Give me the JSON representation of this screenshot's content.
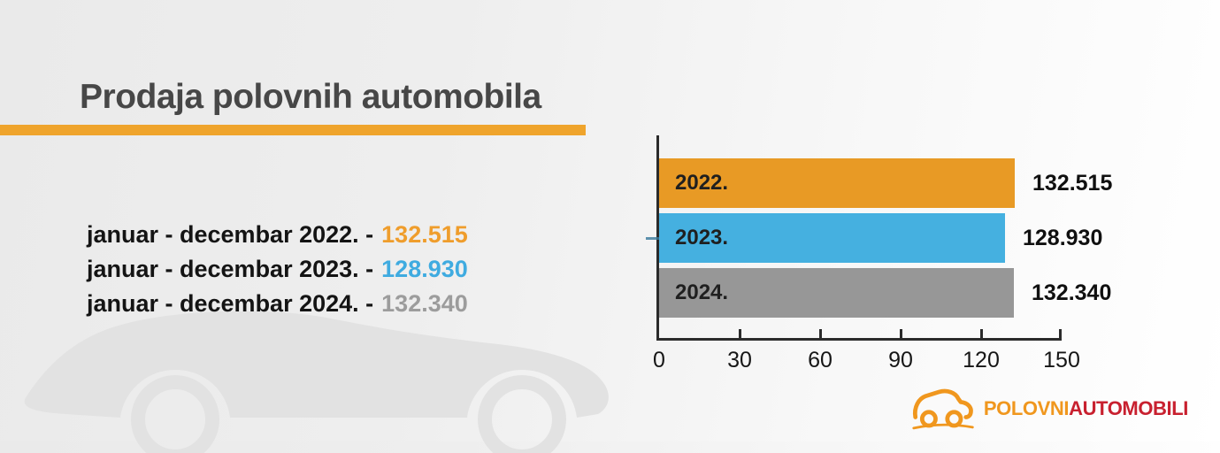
{
  "header": {
    "title": "Prodaja polovnih automobila"
  },
  "summary": {
    "lines": [
      {
        "prefix": "januar - decembar 2022. -",
        "value": "132.515"
      },
      {
        "prefix": "januar - decembar 2023. -",
        "value": "128.930"
      },
      {
        "prefix": "januar - decembar 2024. -",
        "value": "132.340"
      }
    ]
  },
  "chart_data": {
    "type": "bar",
    "orientation": "horizontal",
    "title": "",
    "xlabel": "",
    "ylabel": "",
    "categories": [
      "2022.",
      "2023.",
      "2024."
    ],
    "values": [
      132515,
      128930,
      132340
    ],
    "value_labels": [
      "132.515",
      "128.930",
      "132.340"
    ],
    "bar_colors": [
      "#e89a25",
      "#45b0e0",
      "#979797"
    ],
    "x_tick_labels": [
      "0",
      "30",
      "60",
      "90",
      "120",
      "150"
    ],
    "xlim": [
      0,
      150
    ],
    "axis_unit_scale": 1000,
    "grid": false,
    "legend": false
  },
  "logo": {
    "word1": "POLOVNI",
    "word2": "AUTOMOBILI"
  },
  "colors": {
    "accent_orange": "#ef9d2c",
    "accent_blue": "#3fabe0",
    "accent_gray": "#9c9c9c",
    "underline_orange": "#efa42c",
    "title_gray": "#474747",
    "logo_orange": "#f0971e",
    "logo_red": "#c8202f",
    "axis_black": "#2b2b2b"
  },
  "icons": {
    "logo_car": "car-outline-icon",
    "watermark": "car-silhouette-watermark"
  }
}
